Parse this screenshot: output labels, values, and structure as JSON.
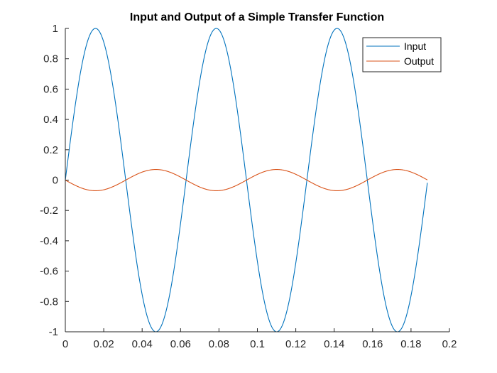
{
  "chart_data": {
    "type": "line",
    "title": "Input and Output of a Simple Transfer Function",
    "xlabel": "",
    "ylabel": "",
    "xlim": [
      0,
      0.2
    ],
    "ylim": [
      -1,
      1
    ],
    "x_ticks": [
      0,
      0.02,
      0.04,
      0.06,
      0.08,
      0.1,
      0.12,
      0.14,
      0.16,
      0.18,
      0.2
    ],
    "x_tick_labels": [
      "0",
      "0.02",
      "0.04",
      "0.06",
      "0.08",
      "0.1",
      "0.12",
      "0.14",
      "0.16",
      "0.18",
      "0.2"
    ],
    "y_ticks": [
      -1,
      -0.8,
      -0.6,
      -0.4,
      -0.2,
      0,
      0.2,
      0.4,
      0.6,
      0.8,
      1
    ],
    "y_tick_labels": [
      "-1",
      "-0.8",
      "-0.6",
      "-0.4",
      "-0.2",
      "0",
      "0.2",
      "0.4",
      "0.6",
      "0.8",
      "1"
    ],
    "grid": false,
    "legend_position": "top-right",
    "x_start": 0,
    "x_end": 0.1885,
    "series": [
      {
        "name": "Input",
        "color": "#0072BD",
        "waveform": "sine",
        "amplitude": 1,
        "frequency_hz": 15.9,
        "phase_deg": 0
      },
      {
        "name": "Output",
        "color": "#D95319",
        "waveform": "sine",
        "amplitude": 0.07,
        "frequency_hz": 15.9,
        "phase_deg": 180
      }
    ]
  }
}
